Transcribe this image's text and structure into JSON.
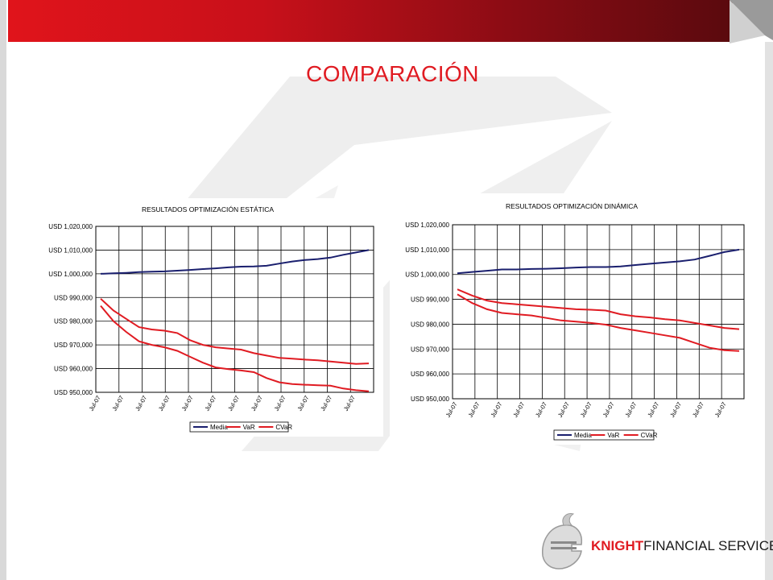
{
  "slide": {
    "title": "COMPARACIÓN",
    "accent": "#e01b22"
  },
  "logo": {
    "icon": "knight-helmet-icon",
    "part1": "KNIGHT",
    "part2": "FINANCIAL SERVICES"
  },
  "chart_data": [
    {
      "type": "line",
      "title": "RESULTADOS OPTIMIZACIÓN ESTÁTICA",
      "xlabel": "",
      "ylabel": "",
      "ylim": [
        950000,
        1020000
      ],
      "y_ticks": [
        "USD 1,020,000",
        "USD 1,010,000",
        "USD 1,000,000",
        "USD 990,000",
        "USD 980,000",
        "USD 970,000",
        "USD 960,000",
        "USD 950,000"
      ],
      "x_ticks": [
        "Jul-07",
        "Jul-07",
        "Jul-07",
        "Jul-07",
        "Jul-07",
        "Jul-07",
        "Jul-07",
        "Jul-07",
        "Jul-07",
        "Jul-07",
        "Jul-07",
        "Jul-07"
      ],
      "grid": true,
      "legend": "bottom",
      "series": [
        {
          "name": "Media",
          "color": "#1a1f6e",
          "values": [
            1000000,
            1000200,
            1000400,
            1000700,
            1000900,
            1001000,
            1001300,
            1001600,
            1002000,
            1002300,
            1002700,
            1003000,
            1003100,
            1003400,
            1004300,
            1005200,
            1005800,
            1006200,
            1006800,
            1008000,
            1009000,
            1010000
          ]
        },
        {
          "name": "VaR",
          "color": "#e01b22",
          "values": [
            989500,
            984500,
            981000,
            977500,
            976500,
            976000,
            975000,
            972000,
            970000,
            969000,
            968500,
            968000,
            966500,
            965500,
            964500,
            964200,
            963800,
            963500,
            963000,
            962500,
            962000,
            962200
          ]
        },
        {
          "name": "CVaR",
          "color": "#e01b22",
          "values": [
            986500,
            980000,
            975500,
            971500,
            970000,
            969000,
            967500,
            965000,
            962500,
            960500,
            959800,
            959200,
            958500,
            956000,
            954200,
            953500,
            953200,
            953000,
            952800,
            951600,
            950900,
            950400
          ]
        }
      ]
    },
    {
      "type": "line",
      "title": "RESULTADOS OPTIMIZACIÓN DINÁMICA",
      "xlabel": "",
      "ylabel": "",
      "ylim": [
        950000,
        1020000
      ],
      "y_ticks": [
        "USD 1,020,000",
        "USD 1,010,000",
        "USD 1,000,000",
        "USD 990,000",
        "USD 980,000",
        "USD 970,000",
        "USD 960,000",
        "USD 950,000"
      ],
      "x_ticks": [
        "Jul-07",
        "Jul-07",
        "Jul-07",
        "Jul-07",
        "Jul-07",
        "Jul-07",
        "Jul-07",
        "Jul-07",
        "Jul-07",
        "Jul-07",
        "Jul-07",
        "Jul-07",
        "Jul-07"
      ],
      "grid": true,
      "legend": "bottom",
      "series": [
        {
          "name": "Media",
          "color": "#1a1f6e",
          "values": [
            1000500,
            1001000,
            1001500,
            1002000,
            1002000,
            1002200,
            1002300,
            1002500,
            1002800,
            1003000,
            1003000,
            1003200,
            1003800,
            1004300,
            1004800,
            1005300,
            1006000,
            1007500,
            1009000,
            1010000
          ]
        },
        {
          "name": "VaR",
          "color": "#e01b22",
          "values": [
            994000,
            991500,
            989500,
            988500,
            988000,
            987500,
            987000,
            986500,
            986000,
            985800,
            985500,
            984000,
            983200,
            982700,
            982000,
            981500,
            980500,
            979500,
            978500,
            978000
          ]
        },
        {
          "name": "CVaR",
          "color": "#e01b22",
          "values": [
            992000,
            988500,
            986000,
            984500,
            984000,
            983500,
            982500,
            981500,
            981000,
            980500,
            979800,
            978500,
            977500,
            976500,
            975500,
            974500,
            972500,
            970500,
            969500,
            969200
          ]
        }
      ]
    }
  ]
}
